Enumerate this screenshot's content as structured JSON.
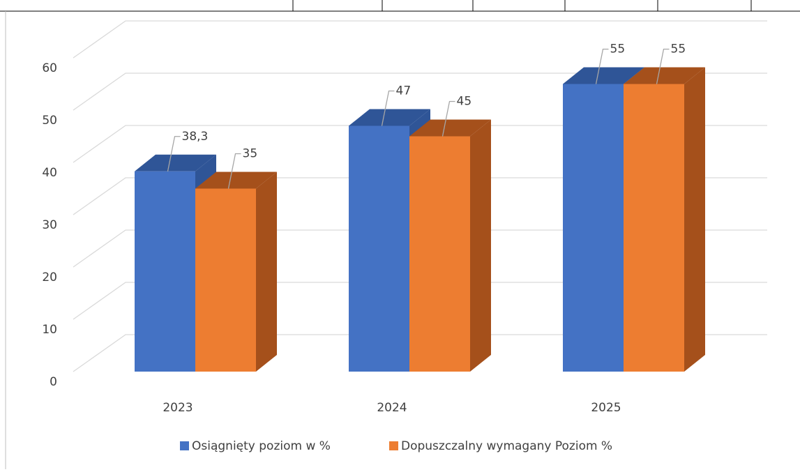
{
  "chart_data": {
    "type": "bar3d",
    "categories": [
      "2023",
      "2024",
      "2025"
    ],
    "series": [
      {
        "name": "Osiągnięty poziom w %",
        "color": "#4472c4",
        "side_color": "#2f5597",
        "values": [
          38.3,
          47,
          55
        ],
        "value_labels": [
          "38,3",
          "47",
          "55"
        ]
      },
      {
        "name": "Dopuszczalny wymagany Poziom %",
        "color": "#ed7d31",
        "side_color": "#a5501b",
        "values": [
          35,
          45,
          55
        ]
      }
    ],
    "ylim": [
      0,
      60
    ],
    "yticks": [
      0,
      10,
      20,
      30,
      40,
      50,
      60
    ],
    "grid": true,
    "legend": "bottom"
  }
}
